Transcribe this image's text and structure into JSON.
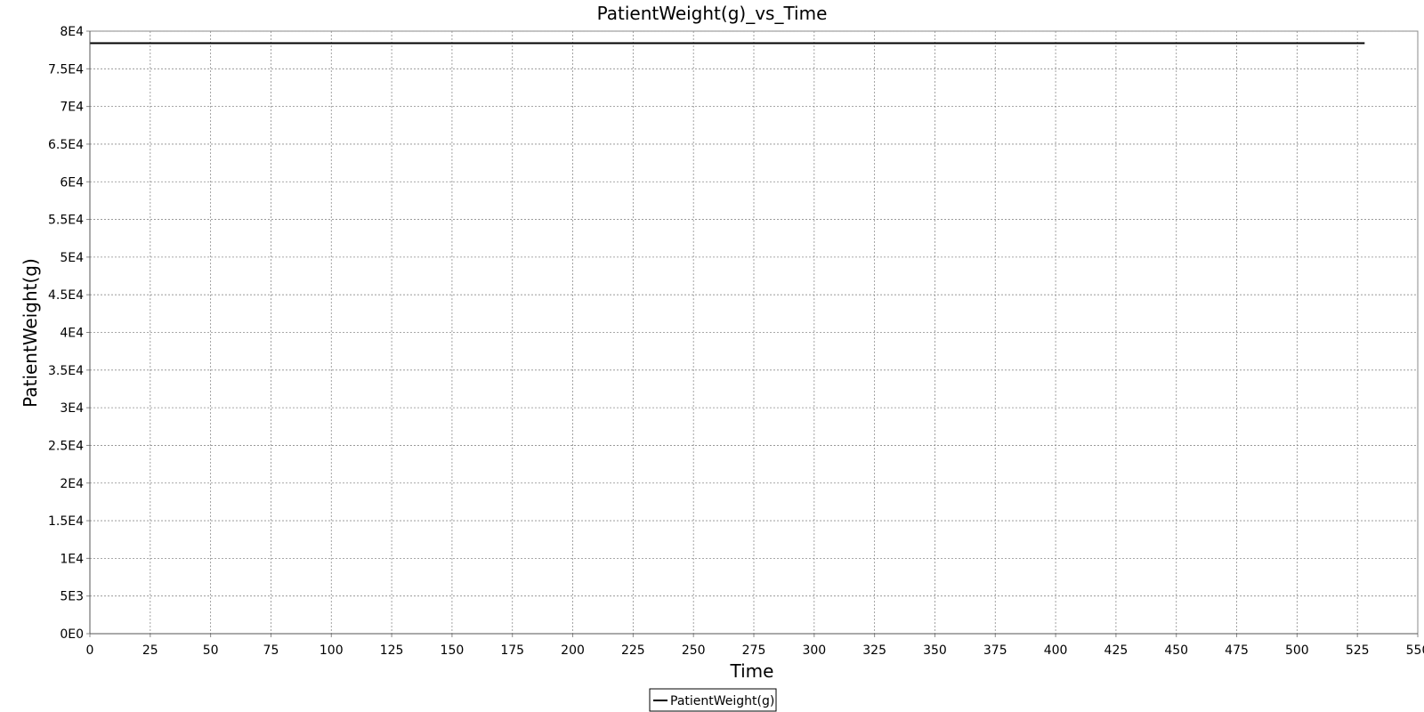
{
  "chart_data": {
    "type": "line",
    "title": "PatientWeight(g)_vs_Time",
    "xlabel": "Time",
    "ylabel": "PatientWeight(g)",
    "xlim": [
      0,
      550
    ],
    "ylim": [
      0,
      80000
    ],
    "x_ticks": [
      0,
      25,
      50,
      75,
      100,
      125,
      150,
      175,
      200,
      225,
      250,
      275,
      300,
      325,
      350,
      375,
      400,
      425,
      450,
      475,
      500,
      525,
      550
    ],
    "x_tick_labels": [
      "0",
      "25",
      "50",
      "75",
      "100",
      "125",
      "150",
      "175",
      "200",
      "225",
      "250",
      "275",
      "300",
      "325",
      "350",
      "375",
      "400",
      "425",
      "450",
      "475",
      "500",
      "525",
      "550"
    ],
    "y_ticks": [
      0,
      5000,
      10000,
      15000,
      20000,
      25000,
      30000,
      35000,
      40000,
      45000,
      50000,
      55000,
      60000,
      65000,
      70000,
      75000,
      80000
    ],
    "y_tick_labels": [
      "0E0",
      "5E3",
      "1E4",
      "1.5E4",
      "2E4",
      "2.5E4",
      "3E4",
      "3.5E4",
      "4E4",
      "4.5E4",
      "5E4",
      "5.5E4",
      "6E4",
      "6.5E4",
      "7E4",
      "7.5E4",
      "8E4"
    ],
    "grid": true,
    "legend_position": "bottom-center",
    "series": [
      {
        "name": "PatientWeight(g)",
        "color": "#000000",
        "x": [
          0,
          528
        ],
        "y": [
          78400,
          78400
        ]
      }
    ]
  }
}
